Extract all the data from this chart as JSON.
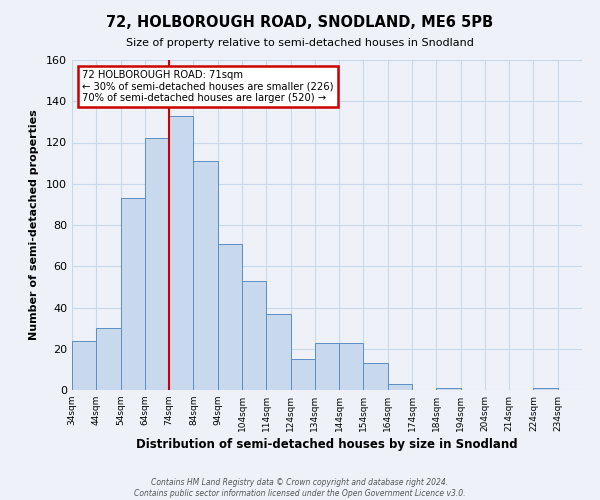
{
  "title": "72, HOLBOROUGH ROAD, SNODLAND, ME6 5PB",
  "subtitle": "Size of property relative to semi-detached houses in Snodland",
  "xlabel": "Distribution of semi-detached houses by size in Snodland",
  "ylabel": "Number of semi-detached properties",
  "bin_labels": [
    "34sqm",
    "44sqm",
    "54sqm",
    "64sqm",
    "74sqm",
    "84sqm",
    "94sqm",
    "104sqm",
    "114sqm",
    "124sqm",
    "134sqm",
    "144sqm",
    "154sqm",
    "164sqm",
    "174sqm",
    "184sqm",
    "194sqm",
    "204sqm",
    "214sqm",
    "224sqm",
    "234sqm"
  ],
  "bin_edges": [
    34,
    44,
    54,
    64,
    74,
    84,
    94,
    104,
    114,
    124,
    134,
    144,
    154,
    164,
    174,
    184,
    194,
    204,
    214,
    224,
    234,
    244
  ],
  "counts": [
    24,
    30,
    93,
    122,
    133,
    111,
    71,
    53,
    37,
    15,
    23,
    23,
    13,
    3,
    0,
    1,
    0,
    0,
    0,
    1,
    0
  ],
  "bar_facecolor": "#c9d9ed",
  "bar_edgecolor": "#5b8ec4",
  "property_bin_edge": 74,
  "red_line_color": "#cc0000",
  "annotation_text_line1": "72 HOLBOROUGH ROAD: 71sqm",
  "annotation_text_line2": "← 30% of semi-detached houses are smaller (226)",
  "annotation_text_line3": "70% of semi-detached houses are larger (520) →",
  "annotation_box_edgecolor": "#cc0000",
  "annotation_box_facecolor": "#ffffff",
  "ylim": [
    0,
    160
  ],
  "yticks": [
    0,
    20,
    40,
    60,
    80,
    100,
    120,
    140,
    160
  ],
  "footer_line1": "Contains HM Land Registry data © Crown copyright and database right 2024.",
  "footer_line2": "Contains public sector information licensed under the Open Government Licence v3.0.",
  "grid_color": "#c8d8e8",
  "background_color": "#eef2f8"
}
